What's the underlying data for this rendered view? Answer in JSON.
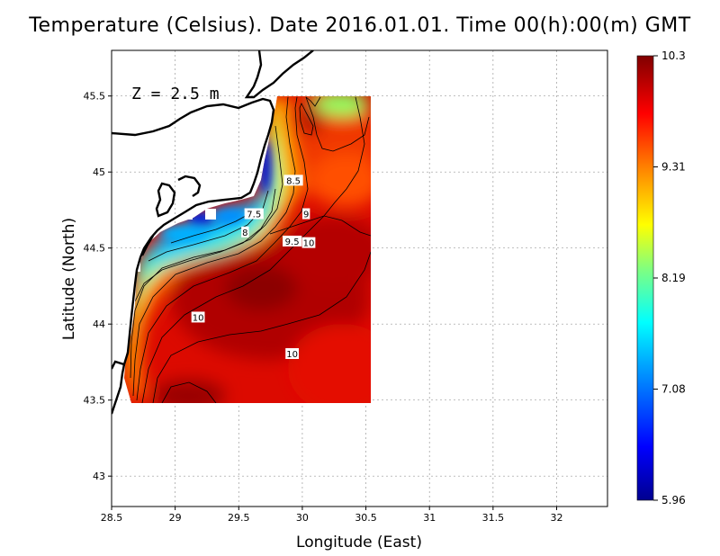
{
  "title": "Temperature (Celsius). Date 2016.01.01. Time 00(h):00(m) GMT",
  "depth_label": "Z = 2.5 m",
  "chart_data": {
    "type": "heatmap",
    "xlabel": "Longitude (East)",
    "ylabel": "Latitude (North)",
    "xlim": [
      28.5,
      32.4
    ],
    "ylim": [
      42.8,
      45.8
    ],
    "x_ticks": [
      "28.5",
      "29",
      "29.5",
      "30",
      "30.5",
      "31",
      "31.5",
      "32"
    ],
    "y_ticks": [
      "43",
      "43.5",
      "44",
      "44.5",
      "45",
      "45.5"
    ],
    "grid": true,
    "colorbar": {
      "min": 5.96,
      "max": 10.3,
      "tick_labels": [
        "10.3",
        "9.31",
        "8.19",
        "7.08",
        "5.96"
      ],
      "colormap": [
        "#00008f",
        "#0000ff",
        "#00a0ff",
        "#00ffff",
        "#80ff80",
        "#ffff00",
        "#ff8000",
        "#ff0000",
        "#800000"
      ]
    },
    "contour_labels": [
      {
        "text": "8.5",
        "lon": 29.93,
        "lat": 44.94
      },
      {
        "text": "9",
        "lon": 30.03,
        "lat": 44.72
      },
      {
        "text": "7.5",
        "lon": 29.62,
        "lat": 44.72
      },
      {
        "text": "8",
        "lon": 29.55,
        "lat": 44.6
      },
      {
        "text": "9.5",
        "lon": 29.92,
        "lat": 44.54
      },
      {
        "text": "10",
        "lon": 30.05,
        "lat": 44.53
      },
      {
        "text": "10",
        "lon": 29.18,
        "lat": 44.04
      },
      {
        "text": "10",
        "lon": 29.92,
        "lat": 43.8
      }
    ]
  }
}
